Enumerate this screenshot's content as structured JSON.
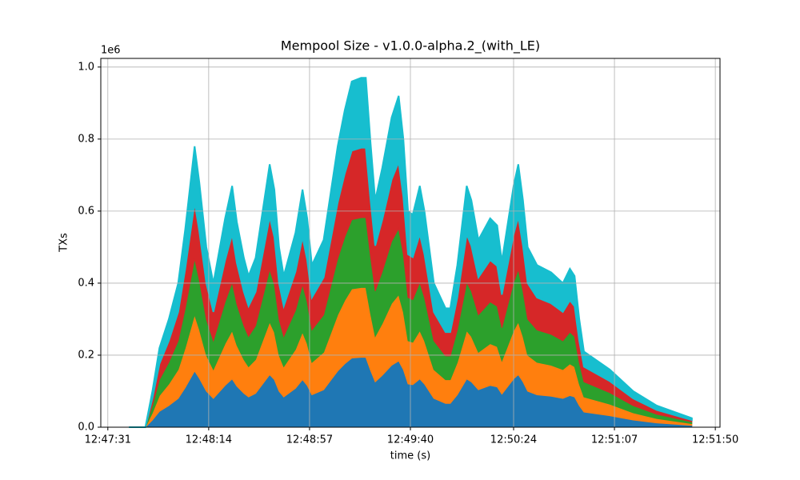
{
  "chart_data": {
    "type": "stackplot",
    "title": "Mempool Size  -  v1.0.0-alpha.2_(with_LE)",
    "x_label": "time (s)",
    "y_label": "TXs",
    "y_offset_text": "1e6",
    "x": [
      46060,
      46067,
      46070,
      46073,
      46077,
      46081,
      46084,
      46088,
      46090,
      46093,
      46096,
      46101,
      46104,
      46106,
      46109,
      46111,
      46114,
      46120,
      46122,
      46124,
      46126,
      46131,
      46134,
      46136,
      46138,
      46143,
      46146,
      46149,
      46152,
      46155,
      46159,
      46161,
      46163,
      46165,
      46168,
      46172,
      46175,
      46177,
      46179,
      46181,
      46184,
      46186,
      46190,
      46195,
      46197,
      46200,
      46204,
      46206,
      46209,
      46214,
      46217,
      46219,
      46224,
      46226,
      46228,
      46230,
      46234,
      46240,
      46245,
      46248,
      46250,
      46252,
      46254,
      46265,
      46275,
      46285,
      46300
    ],
    "series": [
      {
        "color": "#1f77b4",
        "values": [
          0,
          0,
          20000,
          44000,
          60000,
          80000,
          110000,
          156000,
          136000,
          100000,
          80000,
          116000,
          134000,
          114000,
          94000,
          84000,
          94000,
          146000,
          132000,
          100000,
          84000,
          108000,
          132000,
          116000,
          90000,
          104000,
          130000,
          156000,
          176000,
          192000,
          194000,
          194000,
          158000,
          126000,
          144000,
          172000,
          184000,
          160000,
          120000,
          118000,
          134000,
          120000,
          80000,
          66000,
          66000,
          90000,
          134000,
          126000,
          104000,
          116000,
          112000,
          92000,
          134000,
          146000,
          126000,
          100000,
          90000,
          86000,
          80000,
          88000,
          84000,
          60000,
          42000,
          32000,
          20000,
          12000,
          5000
        ]
      },
      {
        "color": "#ff7f0e",
        "values": [
          0,
          0,
          20000,
          44000,
          60000,
          80000,
          110000,
          156000,
          136000,
          100000,
          80000,
          116000,
          134000,
          114000,
          94000,
          84000,
          94000,
          146000,
          132000,
          100000,
          84000,
          108000,
          132000,
          116000,
          90000,
          104000,
          130000,
          156000,
          176000,
          192000,
          194000,
          194000,
          158000,
          126000,
          144000,
          172000,
          184000,
          160000,
          120000,
          118000,
          134000,
          120000,
          80000,
          66000,
          66000,
          90000,
          134000,
          126000,
          104000,
          116000,
          112000,
          92000,
          134000,
          146000,
          126000,
          100000,
          90000,
          86000,
          80000,
          88000,
          84000,
          60000,
          42000,
          32000,
          20000,
          12000,
          5000
        ]
      },
      {
        "color": "#2ca02c",
        "values": [
          0,
          0,
          20000,
          44000,
          60000,
          80000,
          110000,
          156000,
          136000,
          100000,
          80000,
          116000,
          134000,
          114000,
          94000,
          84000,
          94000,
          146000,
          132000,
          100000,
          84000,
          108000,
          132000,
          116000,
          90000,
          104000,
          130000,
          156000,
          176000,
          192000,
          194000,
          194000,
          158000,
          126000,
          144000,
          172000,
          184000,
          160000,
          120000,
          118000,
          134000,
          120000,
          80000,
          66000,
          66000,
          90000,
          134000,
          126000,
          104000,
          116000,
          112000,
          92000,
          134000,
          146000,
          126000,
          100000,
          90000,
          86000,
          80000,
          88000,
          84000,
          60000,
          42000,
          32000,
          20000,
          12000,
          5000
        ]
      },
      {
        "color": "#d62728",
        "values": [
          0,
          0,
          20000,
          44000,
          60000,
          80000,
          110000,
          156000,
          136000,
          100000,
          80000,
          116000,
          134000,
          114000,
          94000,
          84000,
          94000,
          146000,
          132000,
          100000,
          84000,
          108000,
          132000,
          116000,
          90000,
          104000,
          130000,
          156000,
          176000,
          192000,
          194000,
          194000,
          158000,
          126000,
          144000,
          172000,
          184000,
          160000,
          120000,
          118000,
          134000,
          120000,
          80000,
          66000,
          66000,
          90000,
          134000,
          126000,
          104000,
          116000,
          112000,
          92000,
          134000,
          146000,
          126000,
          100000,
          90000,
          86000,
          80000,
          88000,
          84000,
          60000,
          42000,
          32000,
          20000,
          12000,
          5000
        ]
      },
      {
        "color": "#17becf",
        "values": [
          0,
          0,
          20000,
          44000,
          60000,
          80000,
          110000,
          156000,
          136000,
          100000,
          80000,
          116000,
          134000,
          114000,
          94000,
          84000,
          94000,
          146000,
          132000,
          100000,
          84000,
          108000,
          132000,
          116000,
          90000,
          104000,
          130000,
          156000,
          176000,
          192000,
          194000,
          194000,
          158000,
          126000,
          144000,
          172000,
          184000,
          160000,
          120000,
          118000,
          134000,
          120000,
          80000,
          66000,
          66000,
          90000,
          134000,
          126000,
          104000,
          116000,
          112000,
          92000,
          134000,
          146000,
          126000,
          100000,
          90000,
          86000,
          80000,
          88000,
          84000,
          60000,
          42000,
          32000,
          20000,
          12000,
          5000
        ]
      }
    ],
    "xlim": [
      46048,
      46312
    ],
    "xticks": [
      {
        "value": 46051,
        "label": "12:47:31"
      },
      {
        "value": 46094,
        "label": "12:48:14"
      },
      {
        "value": 46137,
        "label": "12:48:57"
      },
      {
        "value": 46180,
        "label": "12:49:40"
      },
      {
        "value": 46224,
        "label": "12:50:24"
      },
      {
        "value": 46267,
        "label": "12:51:07"
      },
      {
        "value": 46310,
        "label": "12:51:50"
      }
    ],
    "ylim": [
      0,
      1024000
    ],
    "yticks": [
      {
        "value": 0,
        "label": "0.0"
      },
      {
        "value": 200000,
        "label": "0.2"
      },
      {
        "value": 400000,
        "label": "0.4"
      },
      {
        "value": 600000,
        "label": "0.6"
      },
      {
        "value": 800000,
        "label": "0.8"
      },
      {
        "value": 1000000,
        "label": "1.0"
      }
    ],
    "grid": true
  }
}
